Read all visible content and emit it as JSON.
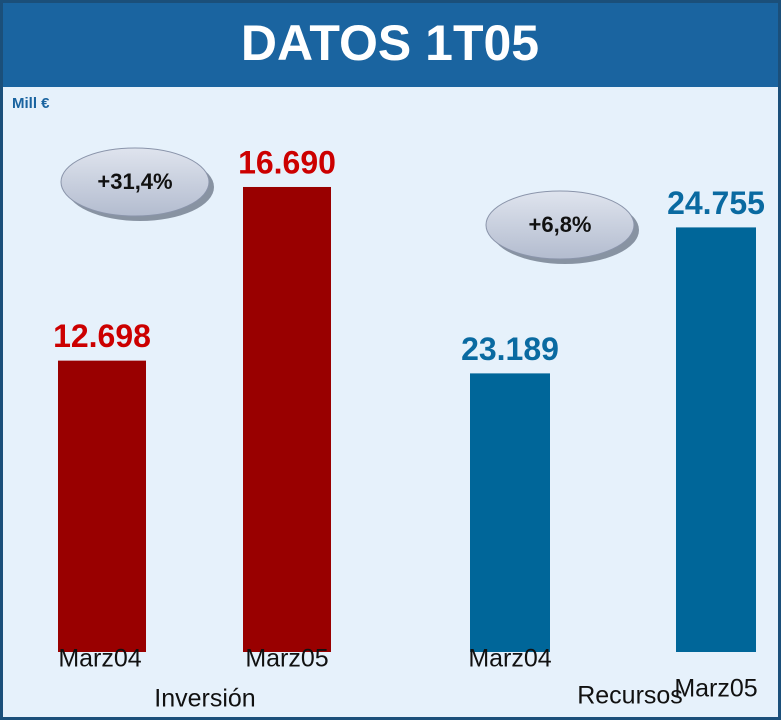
{
  "title": "DATOS 1T05",
  "unit": "Mill €",
  "chart_data": [
    {
      "type": "bar",
      "xlabel": "Inversión",
      "categories": [
        "Marz04",
        "Marz05"
      ],
      "values": [
        12698,
        16690
      ],
      "value_labels": [
        "12.698",
        "16.690"
      ],
      "color": "#990000",
      "label_color": "#cc0000",
      "ylim": [
        6000,
        18000
      ],
      "annotations": [
        "+31,4%"
      ]
    },
    {
      "type": "bar",
      "xlabel": "Recursos",
      "categories": [
        "Marz04",
        "Marz05"
      ],
      "values": [
        23189,
        24755
      ],
      "value_labels": [
        "23.189",
        "24.755"
      ],
      "color": "#006699",
      "label_color": "#0a6aa1",
      "ylim": [
        20200,
        25800
      ],
      "annotations": [
        "+6,8%"
      ]
    }
  ]
}
